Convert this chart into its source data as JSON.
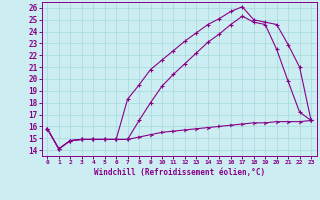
{
  "xlabel": "Windchill (Refroidissement éolien,°C)",
  "bg_color": "#cceef2",
  "grid_color": "#aadddd",
  "line_color": "#880088",
  "xlim": [
    -0.5,
    23.5
  ],
  "ylim": [
    13.5,
    26.5
  ],
  "xticks": [
    0,
    1,
    2,
    3,
    4,
    5,
    6,
    7,
    8,
    9,
    10,
    11,
    12,
    13,
    14,
    15,
    16,
    17,
    18,
    19,
    20,
    21,
    22,
    23
  ],
  "yticks": [
    14,
    15,
    16,
    17,
    18,
    19,
    20,
    21,
    22,
    23,
    24,
    25,
    26
  ],
  "line1_x": [
    0,
    1,
    2,
    3,
    4,
    5,
    6,
    7,
    8,
    9,
    10,
    11,
    12,
    13,
    14,
    15,
    16,
    17,
    18,
    19,
    20,
    21,
    22,
    23
  ],
  "line1_y": [
    15.8,
    14.1,
    14.8,
    14.9,
    14.9,
    14.9,
    14.9,
    18.3,
    19.5,
    20.8,
    21.6,
    22.4,
    23.2,
    23.9,
    24.6,
    25.1,
    25.7,
    26.1,
    25.0,
    24.8,
    24.6,
    22.9,
    21.0,
    16.5
  ],
  "line2_x": [
    0,
    1,
    2,
    3,
    4,
    5,
    6,
    7,
    8,
    9,
    10,
    11,
    12,
    13,
    14,
    15,
    16,
    17,
    18,
    19,
    20,
    21,
    22,
    23
  ],
  "line2_y": [
    15.8,
    14.1,
    14.8,
    14.9,
    14.9,
    14.9,
    14.9,
    14.9,
    16.5,
    18.0,
    19.4,
    20.4,
    21.3,
    22.2,
    23.1,
    23.8,
    24.6,
    25.3,
    24.8,
    24.6,
    22.5,
    19.8,
    17.2,
    16.5
  ],
  "line3_x": [
    0,
    1,
    2,
    3,
    4,
    5,
    6,
    7,
    8,
    9,
    10,
    11,
    12,
    13,
    14,
    15,
    16,
    17,
    18,
    19,
    20,
    21,
    22,
    23
  ],
  "line3_y": [
    15.8,
    14.1,
    14.8,
    14.9,
    14.9,
    14.9,
    14.9,
    14.9,
    15.1,
    15.3,
    15.5,
    15.6,
    15.7,
    15.8,
    15.9,
    16.0,
    16.1,
    16.2,
    16.3,
    16.3,
    16.4,
    16.4,
    16.4,
    16.5
  ]
}
